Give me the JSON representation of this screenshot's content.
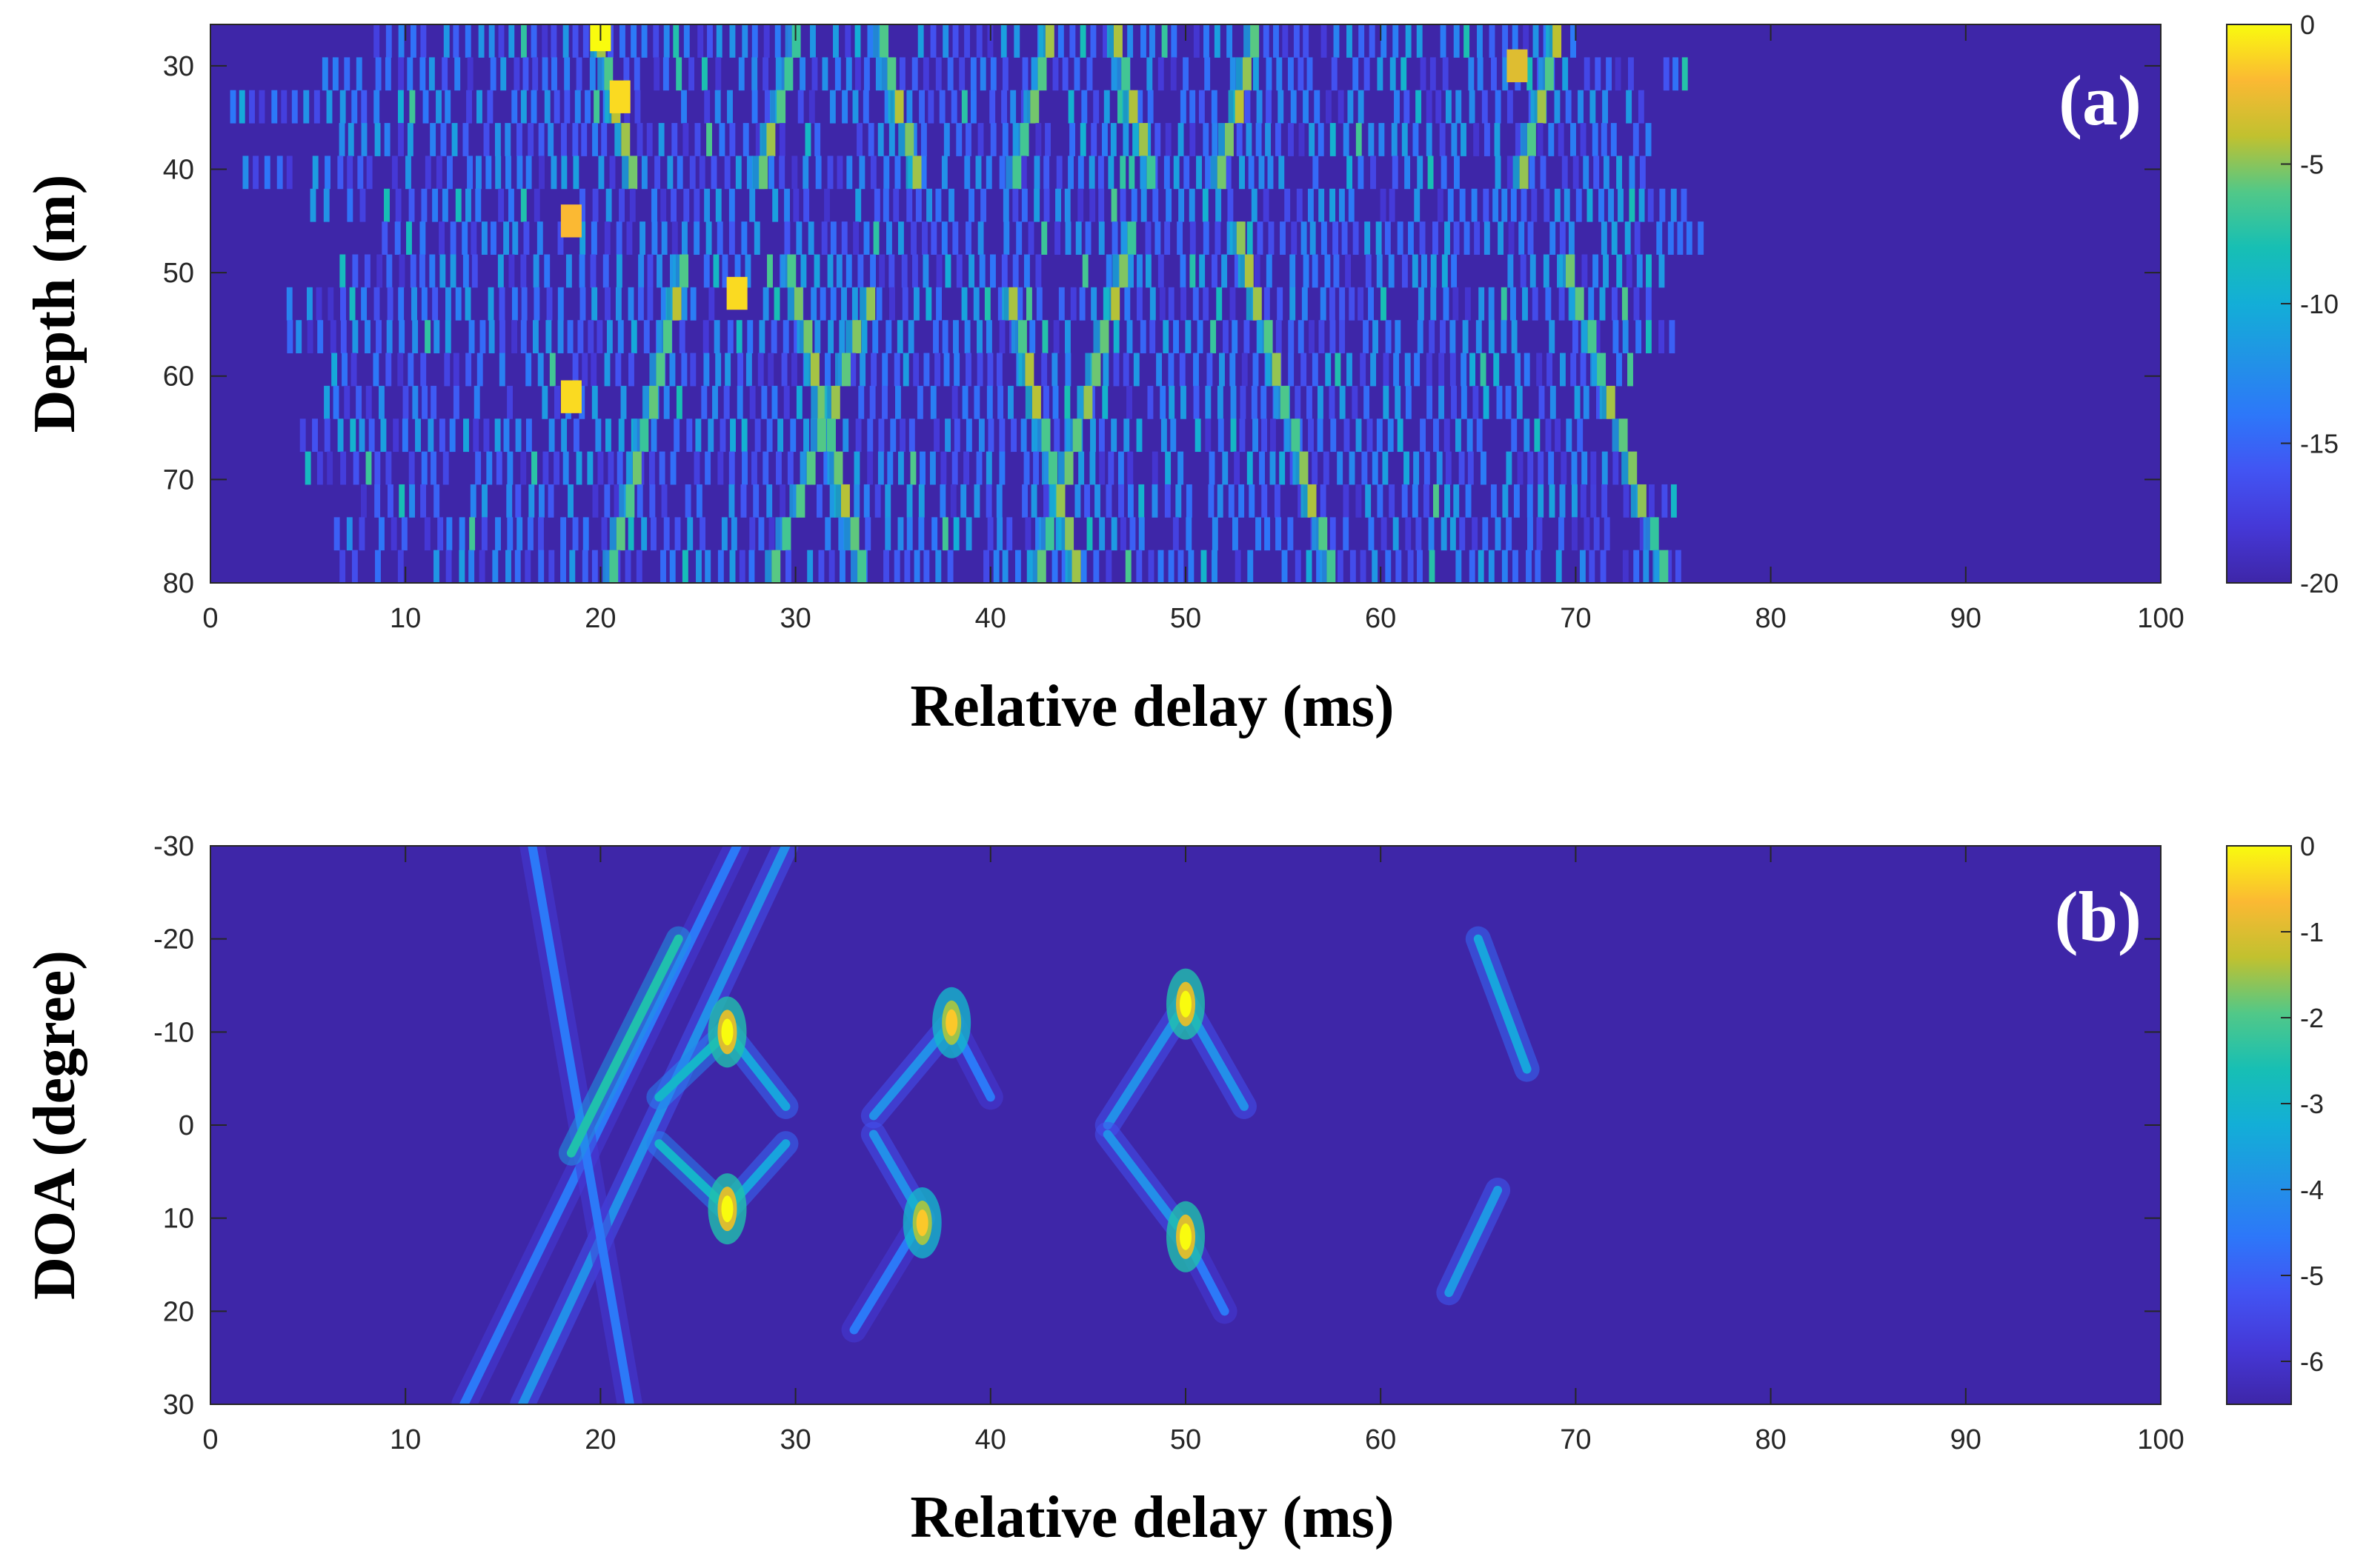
{
  "colors": {
    "background": "#3e26a8",
    "low": "#3e26a8",
    "high": "#f9fb0e",
    "axis": "#262626"
  },
  "colormap": "parula",
  "chart_data": [
    {
      "type": "heatmap",
      "panel_label": "(a)",
      "title": "",
      "xlabel": "Relative delay (ms)",
      "ylabel": "Depth (m)",
      "xlim": [
        0,
        100
      ],
      "ylim": [
        26,
        80
      ],
      "y_reversed": true,
      "xticks": [
        0,
        10,
        20,
        30,
        40,
        50,
        60,
        70,
        80,
        90,
        100
      ],
      "yticks": [
        30,
        40,
        50,
        60,
        70,
        80
      ],
      "colorbar": {
        "min": -20,
        "max": 0,
        "ticks": [
          0,
          -5,
          -10,
          -15,
          -20
        ]
      },
      "grid": false,
      "depth_rows": [
        27,
        30,
        33,
        37,
        40,
        43,
        47,
        50,
        53,
        57,
        60,
        63,
        67,
        70,
        73,
        77,
        80
      ],
      "arrivals": [
        {
          "delay_at_27m": 20.0,
          "delay_per_m": 0.125,
          "range_m": [
            27,
            40
          ]
        },
        {
          "delay_at_27m": 30.0,
          "delay_per_m": -0.13,
          "range_m": [
            27,
            40
          ]
        },
        {
          "delay_at_27m": 34.5,
          "delay_per_m": 0.13,
          "range_m": [
            27,
            40
          ]
        },
        {
          "delay_at_27m": 43.0,
          "delay_per_m": -0.13,
          "range_m": [
            27,
            40
          ]
        },
        {
          "delay_at_27m": 46.5,
          "delay_per_m": 0.13,
          "range_m": [
            27,
            40
          ]
        },
        {
          "delay_at_27m": 53.5,
          "delay_per_m": -0.13,
          "range_m": [
            27,
            40
          ]
        },
        {
          "delay_at_27m": 69.0,
          "delay_per_m": -0.13,
          "range_m": [
            27,
            40
          ]
        },
        {
          "delay_at_27m": 27.0,
          "delay_per_m": -0.12,
          "range_m": [
            50,
            80
          ]
        },
        {
          "delay_at_27m": 27.0,
          "delay_per_m": 0.12,
          "range_m": [
            50,
            80
          ]
        },
        {
          "delay_at_27m": 38.5,
          "delay_per_m": -0.18,
          "range_m": [
            53,
            80
          ]
        },
        {
          "delay_at_27m": 38.0,
          "delay_per_m": 0.12,
          "range_m": [
            53,
            80
          ]
        },
        {
          "delay_at_27m": 50.0,
          "delay_per_m": -0.14,
          "range_m": [
            47,
            80
          ]
        },
        {
          "delay_at_27m": 50.0,
          "delay_per_m": 0.14,
          "range_m": [
            47,
            80
          ]
        },
        {
          "delay_at_27m": 66.0,
          "delay_per_m": 0.16,
          "range_m": [
            50,
            80
          ]
        }
      ],
      "hotspots": [
        {
          "delay": 20,
          "depth": 27,
          "value": 0
        },
        {
          "delay": 21,
          "depth": 33,
          "value": -1
        },
        {
          "delay": 18.5,
          "depth": 45,
          "value": -2
        },
        {
          "delay": 27,
          "depth": 52,
          "value": -1
        },
        {
          "delay": 18.5,
          "depth": 62,
          "value": -1
        },
        {
          "delay": 67,
          "depth": 30,
          "value": -3
        }
      ]
    },
    {
      "type": "heatmap",
      "panel_label": "(b)",
      "title": "",
      "xlabel": "Relative delay (ms)",
      "ylabel": "DOA (degree)",
      "xlim": [
        0,
        100
      ],
      "ylim": [
        -30,
        30
      ],
      "y_reversed": true,
      "xticks": [
        0,
        10,
        20,
        30,
        40,
        50,
        60,
        70,
        80,
        90,
        100
      ],
      "yticks": [
        -30,
        -20,
        -10,
        0,
        10,
        20,
        30
      ],
      "colorbar": {
        "min": -6.5,
        "max": 0,
        "ticks": [
          0,
          -1,
          -2,
          -3,
          -4,
          -5,
          -6
        ]
      },
      "grid": false,
      "ridges": [
        {
          "from": [
            16,
            30
          ],
          "to": [
            29.5,
            -30
          ],
          "value": -4
        },
        {
          "from": [
            13,
            30
          ],
          "to": [
            27,
            -30
          ],
          "value": -4.5
        },
        {
          "from": [
            16.5,
            -30
          ],
          "to": [
            21.5,
            30
          ],
          "value": -4.5
        },
        {
          "from": [
            18.5,
            3
          ],
          "to": [
            24,
            -20
          ],
          "value": -2.5
        },
        {
          "from": [
            23,
            -3
          ],
          "to": [
            26.5,
            -10
          ],
          "value": -3
        },
        {
          "from": [
            26.5,
            -10
          ],
          "to": [
            29.5,
            -2
          ],
          "value": -3.5
        },
        {
          "from": [
            23,
            2
          ],
          "to": [
            26.5,
            9
          ],
          "value": -3
        },
        {
          "from": [
            26.5,
            9
          ],
          "to": [
            29.5,
            2
          ],
          "value": -3.5
        },
        {
          "from": [
            34,
            -1
          ],
          "to": [
            38,
            -11
          ],
          "value": -4
        },
        {
          "from": [
            38,
            -11
          ],
          "to": [
            40,
            -3
          ],
          "value": -4.5
        },
        {
          "from": [
            34,
            1
          ],
          "to": [
            36.5,
            10
          ],
          "value": -4
        },
        {
          "from": [
            36.5,
            10
          ],
          "to": [
            33,
            22
          ],
          "value": -4.5
        },
        {
          "from": [
            46,
            0
          ],
          "to": [
            50,
            -13
          ],
          "value": -4
        },
        {
          "from": [
            50,
            -13
          ],
          "to": [
            53,
            -2
          ],
          "value": -4
        },
        {
          "from": [
            46,
            1
          ],
          "to": [
            50,
            12
          ],
          "value": -4
        },
        {
          "from": [
            50,
            12
          ],
          "to": [
            52,
            20
          ],
          "value": -4.5
        },
        {
          "from": [
            65,
            -20
          ],
          "to": [
            67.5,
            -6
          ],
          "value": -3.5
        },
        {
          "from": [
            66,
            7
          ],
          "to": [
            63.5,
            18
          ],
          "value": -3.8
        }
      ],
      "peaks": [
        {
          "delay": 26.5,
          "doa": -10,
          "value": 0
        },
        {
          "delay": 26.5,
          "doa": 9,
          "value": 0
        },
        {
          "delay": 38,
          "doa": -11,
          "value": -0.5
        },
        {
          "delay": 36.5,
          "doa": 10.5,
          "value": -0.5
        },
        {
          "delay": 50,
          "doa": -13,
          "value": 0
        },
        {
          "delay": 50,
          "doa": 12,
          "value": 0
        }
      ]
    }
  ]
}
